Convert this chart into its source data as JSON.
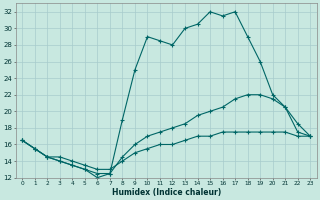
{
  "xlabel": "Humidex (Indice chaleur)",
  "x_ticks": [
    0,
    1,
    2,
    3,
    4,
    5,
    6,
    7,
    8,
    9,
    10,
    11,
    12,
    13,
    14,
    15,
    16,
    17,
    18,
    19,
    20,
    21,
    22,
    23
  ],
  "ylim": [
    12,
    33
  ],
  "xlim": [
    -0.5,
    23.5
  ],
  "yticks": [
    12,
    14,
    16,
    18,
    20,
    22,
    24,
    26,
    28,
    30,
    32
  ],
  "bg_color": "#c8e8e0",
  "grid_color": "#a8cccc",
  "line_color": "#006666",
  "line1_x": [
    0,
    1,
    2,
    3,
    4,
    5,
    6,
    7,
    8,
    9,
    10,
    11,
    12,
    13,
    14,
    15,
    16,
    17,
    18,
    19,
    20,
    21,
    22,
    23
  ],
  "line1_y": [
    16.5,
    15.5,
    14.5,
    14.0,
    13.5,
    13.0,
    12.0,
    12.5,
    19.0,
    25.0,
    29.0,
    28.5,
    28.0,
    30.0,
    30.5,
    32.0,
    31.5,
    32.0,
    29.0,
    26.0,
    22.0,
    20.5,
    17.5,
    17.0
  ],
  "line2_x": [
    0,
    1,
    2,
    3,
    4,
    5,
    6,
    7,
    8,
    9,
    10,
    11,
    12,
    13,
    14,
    15,
    16,
    17,
    18,
    19,
    20,
    21,
    22,
    23
  ],
  "line2_y": [
    16.5,
    15.5,
    14.5,
    14.0,
    13.5,
    13.0,
    12.5,
    12.5,
    14.5,
    16.0,
    17.0,
    17.5,
    18.0,
    18.5,
    19.5,
    20.0,
    20.5,
    21.5,
    22.0,
    22.0,
    21.5,
    20.5,
    18.5,
    17.0
  ],
  "line3_x": [
    0,
    1,
    2,
    3,
    4,
    5,
    6,
    7,
    8,
    9,
    10,
    11,
    12,
    13,
    14,
    15,
    16,
    17,
    18,
    19,
    20,
    21,
    22,
    23
  ],
  "line3_y": [
    16.5,
    15.5,
    14.5,
    14.5,
    14.0,
    13.5,
    13.0,
    13.0,
    14.0,
    15.0,
    15.5,
    16.0,
    16.0,
    16.5,
    17.0,
    17.0,
    17.5,
    17.5,
    17.5,
    17.5,
    17.5,
    17.5,
    17.0,
    17.0
  ]
}
